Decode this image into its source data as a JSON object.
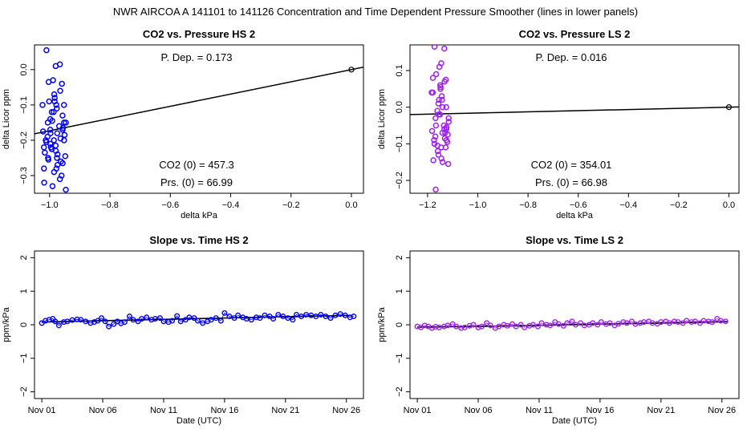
{
  "figure": {
    "suptitle": "NWR   AIRCOA A   141101 to 141126   Concentration and Time Dependent Pressure Smoother (lines in lower panels)"
  },
  "colors": {
    "hs": "#0000ff",
    "ls": "#a020f0",
    "axis": "#000000",
    "line": "#000000"
  },
  "chart_data": [
    {
      "id": "co2-vs-pressure-hs2",
      "type": "scatter",
      "title": "CO2 vs. Pressure HS 2",
      "xlabel": "delta kPa",
      "ylabel": "delta Licor ppm",
      "xlim": [
        -1.05,
        0.04
      ],
      "ylim": [
        -0.35,
        0.07
      ],
      "xticks": [
        -1.0,
        -0.8,
        -0.6,
        -0.4,
        -0.2,
        0.0
      ],
      "xtick_labels": [
        "−1.0",
        "−0.8",
        "−0.6",
        "−0.4",
        "−0.2",
        "0.0"
      ],
      "yticks": [
        0.0,
        -0.1,
        -0.2,
        -0.3
      ],
      "ytick_labels": [
        "0.0",
        "−0.1",
        "−0.2",
        "−0.3"
      ],
      "annotations": {
        "p_dep": "P. Dep. =  0.173",
        "co2_0": "CO2 (0) =  457.3",
        "prs_0": "Prs. (0) =  66.99"
      },
      "fit_line": {
        "slope": 0.173,
        "intercept": 0.0
      },
      "reference_point": [
        0.0,
        0.0
      ],
      "x_center": -0.985,
      "x_spread": 0.04,
      "y_values": [
        0.055,
        0.015,
        0.01,
        -0.03,
        -0.035,
        -0.04,
        -0.06,
        -0.07,
        -0.08,
        -0.09,
        -0.1,
        -0.1,
        -0.11,
        -0.12,
        -0.13,
        -0.14,
        -0.145,
        -0.15,
        -0.15,
        -0.16,
        -0.165,
        -0.17,
        -0.175,
        -0.18,
        -0.185,
        -0.19,
        -0.195,
        -0.2,
        -0.2,
        -0.205,
        -0.21,
        -0.215,
        -0.22,
        -0.225,
        -0.23,
        -0.235,
        -0.24,
        -0.245,
        -0.25,
        -0.255,
        -0.26,
        -0.265,
        -0.27,
        -0.28,
        -0.29,
        -0.3,
        -0.31,
        -0.32,
        -0.33,
        -0.34,
        -0.1,
        -0.12,
        -0.18,
        -0.2,
        -0.22,
        -0.15,
        -0.09,
        -0.17,
        -0.25,
        -0.28
      ]
    },
    {
      "id": "co2-vs-pressure-ls2",
      "type": "scatter",
      "title": "CO2 vs. Pressure LS 2",
      "xlabel": "delta kPa",
      "ylabel": "delta Licor ppm",
      "xlim": [
        -1.27,
        0.04
      ],
      "ylim": [
        -0.235,
        0.17
      ],
      "xticks": [
        -1.2,
        -1.0,
        -0.8,
        -0.6,
        -0.4,
        -0.2,
        0.0
      ],
      "xtick_labels": [
        "−1.2",
        "−1.0",
        "−0.8",
        "−0.6",
        "−0.4",
        "−0.2",
        "0.0"
      ],
      "yticks": [
        0.1,
        0.0,
        -0.1,
        -0.2
      ],
      "ytick_labels": [
        "0.1",
        "0.0",
        "−0.1",
        "−0.2"
      ],
      "annotations": {
        "p_dep": "P. Dep. =  0.016",
        "co2_0": "CO2 (0) =  354.01",
        "prs_0": "Prs. (0) =  66.98"
      },
      "fit_line": {
        "slope": 0.016,
        "intercept": 0.0
      },
      "reference_point": [
        0.0,
        0.0
      ],
      "x_center": -1.15,
      "x_spread": 0.035,
      "y_values": [
        0.165,
        0.16,
        0.12,
        0.11,
        0.09,
        0.075,
        0.07,
        0.06,
        0.055,
        0.05,
        0.04,
        0.03,
        0.02,
        0.01,
        0.0,
        -0.01,
        -0.02,
        -0.03,
        -0.04,
        -0.05,
        -0.055,
        -0.06,
        -0.065,
        -0.07,
        -0.075,
        -0.08,
        -0.085,
        -0.09,
        -0.095,
        -0.1,
        -0.105,
        -0.11,
        -0.12,
        -0.13,
        -0.14,
        -0.145,
        -0.15,
        -0.155,
        -0.225,
        -0.05,
        -0.07,
        -0.09,
        0.0,
        0.04,
        -0.02,
        -0.11,
        -0.06,
        0.08,
        0.02,
        -0.03
      ]
    },
    {
      "id": "slope-vs-time-hs2",
      "type": "line",
      "title": "Slope vs. Time HS 2",
      "xlabel": "Date (UTC)",
      "ylabel": "ppm/kPa",
      "xlim": [
        -0.6,
        26.4
      ],
      "ylim": [
        -2.2,
        2.2
      ],
      "xticks": [
        0,
        5,
        10,
        15,
        20,
        25
      ],
      "xtick_labels": [
        "Nov 01",
        "Nov 06",
        "Nov 11",
        "Nov 16",
        "Nov 21",
        "Nov 26"
      ],
      "yticks": [
        2,
        1,
        0,
        -1,
        -2
      ],
      "ytick_labels": [
        "2",
        "1",
        "0",
        "−1",
        "−2"
      ],
      "smooth_x": [
        0,
        5,
        10,
        15,
        20,
        25.5
      ],
      "smooth_y": [
        0.08,
        0.12,
        0.16,
        0.2,
        0.24,
        0.28
      ],
      "x": [
        0,
        0.3,
        0.6,
        0.9,
        1.1,
        1.4,
        1.8,
        2.1,
        2.5,
        2.9,
        3.2,
        3.6,
        4.0,
        4.3,
        4.6,
        4.9,
        5.2,
        5.5,
        5.9,
        6.2,
        6.5,
        6.8,
        7.2,
        7.5,
        7.9,
        8.2,
        8.6,
        9.0,
        9.3,
        9.7,
        10.0,
        10.4,
        10.7,
        11.1,
        11.4,
        11.8,
        12.1,
        12.5,
        12.8,
        13.2,
        13.6,
        13.9,
        14.3,
        14.7,
        15.0,
        15.4,
        15.8,
        16.1,
        16.5,
        16.8,
        17.2,
        17.6,
        17.9,
        18.3,
        18.7,
        19.0,
        19.4,
        19.8,
        20.2,
        20.6,
        20.9,
        21.3,
        21.7,
        22.1,
        22.5,
        22.9,
        23.3,
        23.7,
        24.1,
        24.5,
        24.9,
        25.3,
        25.6
      ],
      "y": [
        0.05,
        0.12,
        0.15,
        0.18,
        0.1,
        -0.02,
        0.08,
        0.1,
        0.14,
        0.16,
        0.15,
        0.1,
        0.05,
        0.08,
        0.12,
        0.2,
        0.1,
        -0.05,
        0.02,
        0.1,
        0.04,
        0.08,
        0.25,
        0.15,
        0.1,
        0.18,
        0.22,
        0.15,
        0.18,
        0.2,
        0.1,
        0.08,
        0.12,
        0.26,
        0.1,
        0.15,
        0.22,
        0.2,
        0.12,
        0.05,
        0.1,
        0.15,
        0.2,
        0.12,
        0.35,
        0.25,
        0.2,
        0.28,
        0.22,
        0.18,
        0.15,
        0.22,
        0.2,
        0.28,
        0.25,
        0.18,
        0.3,
        0.25,
        0.2,
        0.15,
        0.3,
        0.25,
        0.3,
        0.28,
        0.25,
        0.3,
        0.25,
        0.2,
        0.28,
        0.32,
        0.28,
        0.22,
        0.25
      ]
    },
    {
      "id": "slope-vs-time-ls2",
      "type": "line",
      "title": "Slope vs. Time LS 2",
      "xlabel": "Date (UTC)",
      "ylabel": "ppm/kPa",
      "xlim": [
        -0.6,
        26.4
      ],
      "ylim": [
        -2.2,
        2.2
      ],
      "xticks": [
        0,
        5,
        10,
        15,
        20,
        25
      ],
      "xtick_labels": [
        "Nov 01",
        "Nov 06",
        "Nov 11",
        "Nov 16",
        "Nov 21",
        "Nov 26"
      ],
      "yticks": [
        2,
        1,
        0,
        -1,
        -2
      ],
      "ytick_labels": [
        "2",
        "1",
        "0",
        "−1",
        "−2"
      ],
      "smooth_x": [
        0,
        5,
        10,
        15,
        20,
        25.5
      ],
      "smooth_y": [
        -0.07,
        -0.05,
        -0.02,
        0.02,
        0.05,
        0.09
      ],
      "x": [
        0,
        0.3,
        0.6,
        0.9,
        1.2,
        1.5,
        1.8,
        2.2,
        2.5,
        2.9,
        3.2,
        3.6,
        3.9,
        4.3,
        4.6,
        5.0,
        5.3,
        5.7,
        6.0,
        6.4,
        6.7,
        7.1,
        7.4,
        7.8,
        8.1,
        8.5,
        8.8,
        9.2,
        9.5,
        9.9,
        10.2,
        10.6,
        10.9,
        11.3,
        11.6,
        12.0,
        12.3,
        12.7,
        13.0,
        13.4,
        13.7,
        14.1,
        14.4,
        14.8,
        15.1,
        15.5,
        15.8,
        16.2,
        16.5,
        16.9,
        17.2,
        17.6,
        17.9,
        18.3,
        18.6,
        19.0,
        19.3,
        19.7,
        20.0,
        20.4,
        20.7,
        21.1,
        21.4,
        21.8,
        22.1,
        22.5,
        22.8,
        23.2,
        23.5,
        23.9,
        24.2,
        24.6,
        24.9,
        25.3
      ],
      "y": [
        -0.05,
        -0.08,
        -0.02,
        -0.05,
        -0.1,
        -0.06,
        -0.08,
        -0.05,
        -0.02,
        0.02,
        -0.05,
        -0.1,
        -0.08,
        -0.03,
        0.0,
        -0.08,
        -0.05,
        0.05,
        -0.02,
        -0.1,
        -0.05,
        0.0,
        -0.03,
        0.02,
        -0.05,
        0.0,
        -0.08,
        -0.03,
        0.0,
        -0.05,
        0.05,
        0.0,
        -0.02,
        0.08,
        0.02,
        -0.03,
        0.05,
        0.1,
        0.0,
        0.05,
        -0.02,
        0.0,
        0.05,
        0.0,
        0.08,
        0.02,
        0.05,
        -0.02,
        0.03,
        0.08,
        0.05,
        0.1,
        0.02,
        0.05,
        0.08,
        0.1,
        0.05,
        0.03,
        0.08,
        0.1,
        0.05,
        0.1,
        0.08,
        0.05,
        0.12,
        0.08,
        0.1,
        0.05,
        0.12,
        0.1,
        0.08,
        0.18,
        0.12,
        0.1
      ]
    }
  ]
}
